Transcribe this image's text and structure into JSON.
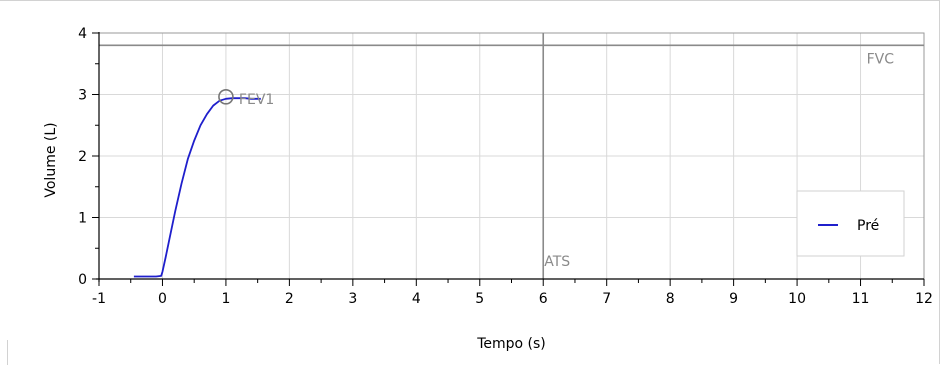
{
  "chart_data": {
    "type": "line",
    "xlabel": "Tempo (s)",
    "ylabel": "Volume (L)",
    "xlim": [
      -1,
      12
    ],
    "ylim": [
      0,
      4
    ],
    "x_ticks": [
      -1,
      0,
      1,
      2,
      3,
      4,
      5,
      6,
      7,
      8,
      9,
      10,
      11,
      12
    ],
    "y_ticks": [
      0,
      1,
      2,
      3,
      4
    ],
    "grid": true,
    "legend_position": "right",
    "series": [
      {
        "name": "Pré",
        "color": "#1f1fcc",
        "x": [
          -0.45,
          -0.3,
          -0.1,
          -0.02,
          0.0,
          0.05,
          0.1,
          0.2,
          0.3,
          0.4,
          0.5,
          0.6,
          0.7,
          0.8,
          0.9,
          1.0,
          1.1,
          1.2,
          1.3,
          1.4,
          1.55
        ],
        "y": [
          0.04,
          0.04,
          0.04,
          0.05,
          0.12,
          0.35,
          0.6,
          1.1,
          1.55,
          1.95,
          2.25,
          2.5,
          2.68,
          2.82,
          2.9,
          2.93,
          2.94,
          2.94,
          2.94,
          2.93,
          2.93
        ]
      }
    ],
    "reference_lines": [
      {
        "axis": "y",
        "value": 3.8,
        "label": "FVC"
      },
      {
        "axis": "x",
        "value": 6,
        "label": "ATS"
      }
    ],
    "markers": [
      {
        "x": 1.0,
        "y": 2.93,
        "label": "FEV1"
      }
    ]
  },
  "colors": {
    "series": "#1f1fcc",
    "grid": "#d9d9d9",
    "reference": "#8a8a8a",
    "annotation": "#8a8a8a"
  }
}
